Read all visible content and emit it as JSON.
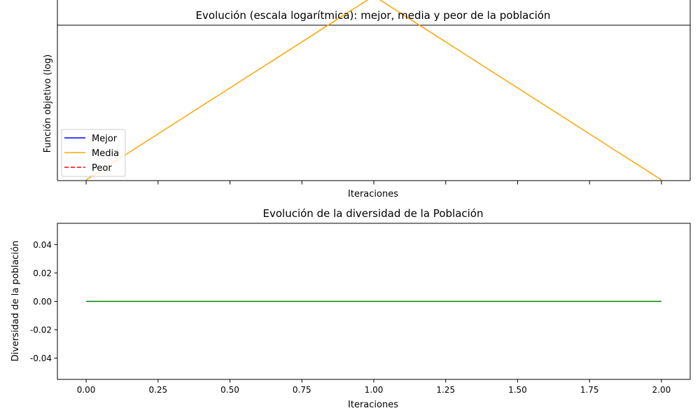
{
  "chart_data": [
    {
      "type": "line",
      "title": "Evolución (escala logarítmica): mejor, media y peor de la población",
      "xlabel": "Iteraciones",
      "ylabel": "Función objetivo (log)",
      "yscale": "log",
      "x": [
        0,
        1,
        2
      ],
      "xlim": [
        -0.1,
        2.1
      ],
      "grid": false,
      "legend": "lower-left",
      "series": [
        {
          "name": "Mejor",
          "color": "#0000ff",
          "dash": "solid",
          "values": [
            null,
            null,
            null
          ]
        },
        {
          "name": "Media",
          "color": "#ffa500",
          "dash": "solid",
          "values": [
            1,
            1.12,
            1
          ],
          "ylim": [
            1,
            1.1
          ]
        },
        {
          "name": "Peor",
          "color": "#ff0000",
          "dash": "dashed",
          "values": [
            null,
            null,
            null
          ]
        }
      ]
    },
    {
      "type": "line",
      "title": "Evolución de la diversidad de la Población",
      "xlabel": "Iteraciones",
      "ylabel": "Diversidad de la población",
      "x": [
        0,
        1,
        2
      ],
      "xlim": [
        -0.1,
        2.1
      ],
      "ylim": [
        -0.055,
        0.055
      ],
      "xticks": [
        "0.00",
        "0.25",
        "0.50",
        "0.75",
        "1.00",
        "1.25",
        "1.50",
        "1.75",
        "2.00"
      ],
      "yticks": [
        "-0.04",
        "-0.02",
        "0.00",
        "0.02",
        "0.04"
      ],
      "grid": false,
      "series": [
        {
          "color": "#008000",
          "values": [
            0,
            0,
            0
          ]
        }
      ]
    }
  ]
}
